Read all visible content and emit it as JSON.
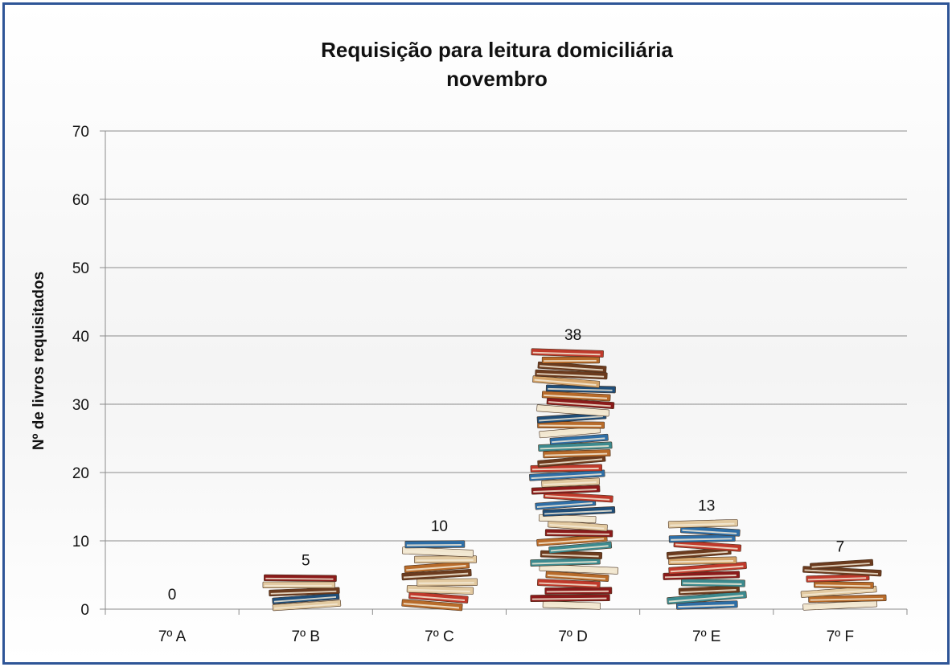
{
  "chart_data": {
    "type": "bar",
    "title": "Requisição para leitura domiciliária",
    "subtitle": "novembro",
    "xlabel": "",
    "ylabel": "Nº de livros requisitados",
    "categories": [
      "7º A",
      "7º B",
      "7º C",
      "7º D",
      "7º E",
      "7º F"
    ],
    "values": [
      0,
      5,
      10,
      38,
      13,
      7
    ],
    "data_labels": [
      "0",
      "5",
      "10",
      "38",
      "13",
      "7"
    ],
    "ylim": [
      0,
      70
    ],
    "yticks": [
      0,
      10,
      20,
      30,
      40,
      50,
      60,
      70
    ],
    "ytick_labels": [
      "0",
      "10",
      "20",
      "30",
      "40",
      "50",
      "60",
      "70"
    ],
    "grid": true,
    "bar_style": "stacked-books-picture"
  },
  "colors": {
    "border": "#2e5597",
    "gridline": "#8c8c8c",
    "books": [
      "#2e6ea6",
      "#c0392b",
      "#e2c9a0",
      "#3c8a8f",
      "#8b1a1a",
      "#d4a46a",
      "#f1e6cf",
      "#6c3b1e",
      "#1f4e79",
      "#b86b2a"
    ]
  }
}
